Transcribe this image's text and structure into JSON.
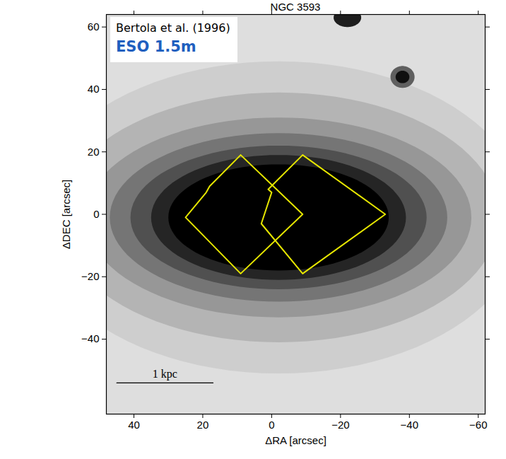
{
  "chart_data": {
    "type": "image",
    "title": "NGC 3593",
    "x_label": "ΔRA [arcsec]",
    "y_label": "ΔDEC [arcsec]",
    "xlim": [
      48,
      -62
    ],
    "ylim": [
      -64,
      64
    ],
    "xticks": [
      40,
      20,
      0,
      -20,
      -40,
      -60
    ],
    "yticks": [
      60,
      40,
      20,
      0,
      -20,
      -40
    ],
    "grid": false,
    "annotations": [
      {
        "text": "Bertola et al. (1996)",
        "color": "#000000"
      },
      {
        "text": "ESO 1.5m",
        "color": "#1f5fbf"
      }
    ],
    "scale_bar": {
      "label": "1 kpc",
      "x": [
        45,
        17
      ],
      "y": -54
    },
    "background_level": 0.22,
    "isophotes": [
      {
        "cx": -2,
        "cy": -1,
        "a": 72,
        "b": 50,
        "level": 0.3
      },
      {
        "cx": -2,
        "cy": -1,
        "a": 64,
        "b": 40,
        "level": 0.4
      },
      {
        "cx": -2,
        "cy": -1,
        "a": 56,
        "b": 32,
        "level": 0.5
      },
      {
        "cx": -2,
        "cy": -1,
        "a": 49,
        "b": 27,
        "level": 0.62
      },
      {
        "cx": -2,
        "cy": -1,
        "a": 43,
        "b": 23,
        "level": 0.75
      },
      {
        "cx": -2,
        "cy": -1,
        "a": 37,
        "b": 20,
        "level": 0.88
      },
      {
        "cx": -2,
        "cy": -1,
        "a": 32,
        "b": 17,
        "level": 1.0
      },
      {
        "cx": -38,
        "cy": 44,
        "a": 3.5,
        "b": 3.5,
        "level": 0.7
      },
      {
        "cx": -38,
        "cy": 44,
        "a": 2,
        "b": 2,
        "level": 0.95
      },
      {
        "cx": -22,
        "cy": 63,
        "a": 4,
        "b": 3,
        "level": 0.9
      }
    ],
    "fields": [
      {
        "vertices": [
          [
            9,
            19
          ],
          [
            18,
            9
          ],
          [
            19,
            7
          ],
          [
            25,
            -1
          ],
          [
            9,
            -19
          ],
          [
            -9,
            0
          ]
        ]
      },
      {
        "vertices": [
          [
            -9,
            19
          ],
          [
            -33,
            0
          ],
          [
            -9,
            -19
          ],
          [
            3,
            -3
          ],
          [
            0,
            7
          ],
          [
            1,
            8
          ]
        ]
      }
    ],
    "color": "#e6e600"
  }
}
